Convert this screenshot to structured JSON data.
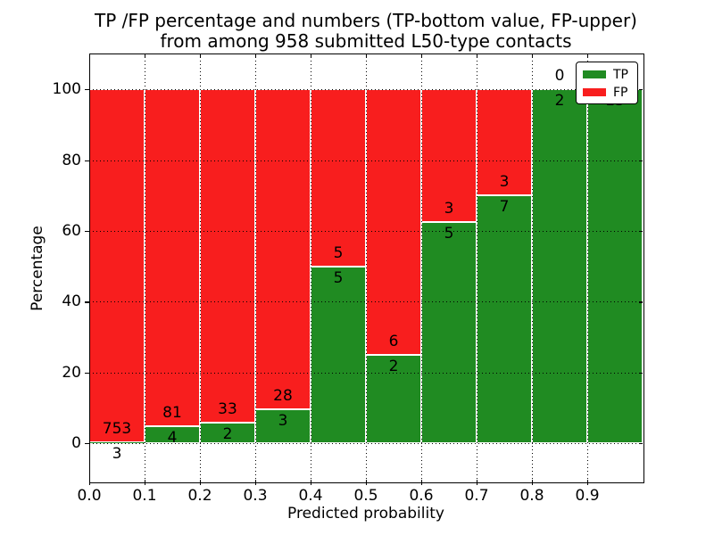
{
  "chart_data": {
    "type": "bar",
    "stacked": true,
    "title_line1": "TP /FP percentage and numbers (TP-bottom value, FP-upper)",
    "title_line2": "from among 958 submitted L50-type contacts",
    "total_submitted": 958,
    "xlabel": "Predicted probability",
    "ylabel": "Percentage",
    "xlim": [
      0.0,
      1.0
    ],
    "ylim": [
      -10.8,
      110.1
    ],
    "grid": true,
    "x_ticks": [
      0.0,
      0.1,
      0.2,
      0.3,
      0.4,
      0.5,
      0.6,
      0.7,
      0.8,
      0.9
    ],
    "x_tick_labels": [
      "0.0",
      "0.1",
      "0.2",
      "0.3",
      "0.4",
      "0.5",
      "0.6",
      "0.7",
      "0.8",
      "0.9"
    ],
    "y_ticks": [
      0,
      20,
      40,
      60,
      80,
      100
    ],
    "y_tick_labels": [
      "0",
      "20",
      "40",
      "60",
      "80",
      "100"
    ],
    "legend": {
      "position": "upper right",
      "entries": [
        {
          "label": "TP",
          "color": "#208b22"
        },
        {
          "label": "FP",
          "color": "#f81e1e"
        }
      ]
    },
    "colors": {
      "tp": "#208b22",
      "fp": "#f81e1e",
      "bar_edge": "#ffffff",
      "grid": "#000000",
      "text": "#000000",
      "background": "#ffffff"
    },
    "bins": [
      {
        "range": [
          0.0,
          0.1
        ],
        "tp": 3,
        "fp": 753,
        "tp_pct": 0.4,
        "fp_label_visible": true,
        "tp_label_visible": true
      },
      {
        "range": [
          0.1,
          0.2
        ],
        "tp": 4,
        "fp": 81,
        "tp_pct": 4.71,
        "fp_label_visible": true,
        "tp_label_visible": true
      },
      {
        "range": [
          0.2,
          0.3
        ],
        "tp": 2,
        "fp": 33,
        "tp_pct": 5.71,
        "fp_label_visible": true,
        "tp_label_visible": true
      },
      {
        "range": [
          0.3,
          0.4
        ],
        "tp": 3,
        "fp": 28,
        "tp_pct": 9.68,
        "fp_label_visible": true,
        "tp_label_visible": true
      },
      {
        "range": [
          0.4,
          0.5
        ],
        "tp": 5,
        "fp": 5,
        "tp_pct": 50.0,
        "fp_label_visible": true,
        "tp_label_visible": true
      },
      {
        "range": [
          0.5,
          0.6
        ],
        "tp": 2,
        "fp": 6,
        "tp_pct": 25.0,
        "fp_label_visible": true,
        "tp_label_visible": true
      },
      {
        "range": [
          0.6,
          0.7
        ],
        "tp": 5,
        "fp": 3,
        "tp_pct": 62.5,
        "fp_label_visible": true,
        "tp_label_visible": true
      },
      {
        "range": [
          0.7,
          0.8
        ],
        "tp": 7,
        "fp": 3,
        "tp_pct": 70.0,
        "fp_label_visible": true,
        "tp_label_visible": true
      },
      {
        "range": [
          0.8,
          0.9
        ],
        "tp": 2,
        "fp": 0,
        "tp_pct": 100.0,
        "fp_label_visible": true,
        "tp_label_visible": true
      },
      {
        "range": [
          0.9,
          1.0
        ],
        "tp": 13,
        "fp": 0,
        "tp_pct": 100.0,
        "fp_label_visible": false,
        "tp_label_visible": true
      }
    ]
  }
}
